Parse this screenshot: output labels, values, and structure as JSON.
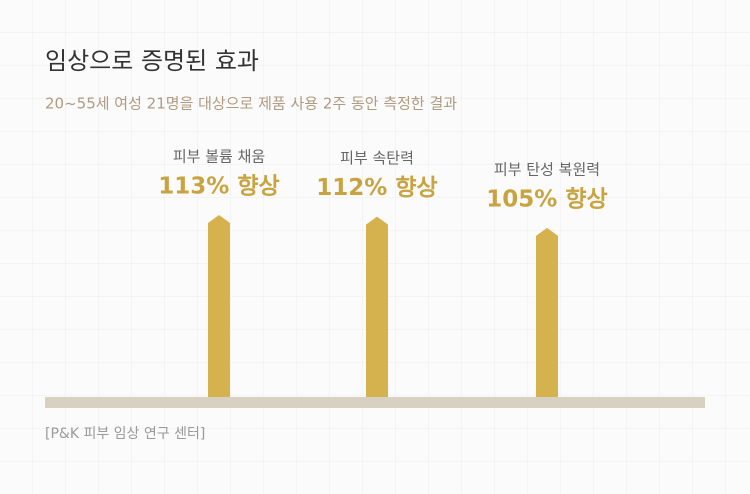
{
  "chart_data": {
    "type": "bar",
    "title": "임상으로 증명된 효과",
    "subtitle": "20~55세 여성 21명을 대상으로 제품 사용 2주 동안 측정한 결과",
    "categories": [
      "피부 볼륨 채움",
      "피부 속탄력",
      "피부 탄성 복원력"
    ],
    "values": [
      113,
      112,
      105
    ],
    "value_labels": [
      "113% 향상",
      "112% 향상",
      "105% 향상"
    ],
    "color": "#d6b24e",
    "source": "[P&K 피부 임상 연구 센터]"
  }
}
